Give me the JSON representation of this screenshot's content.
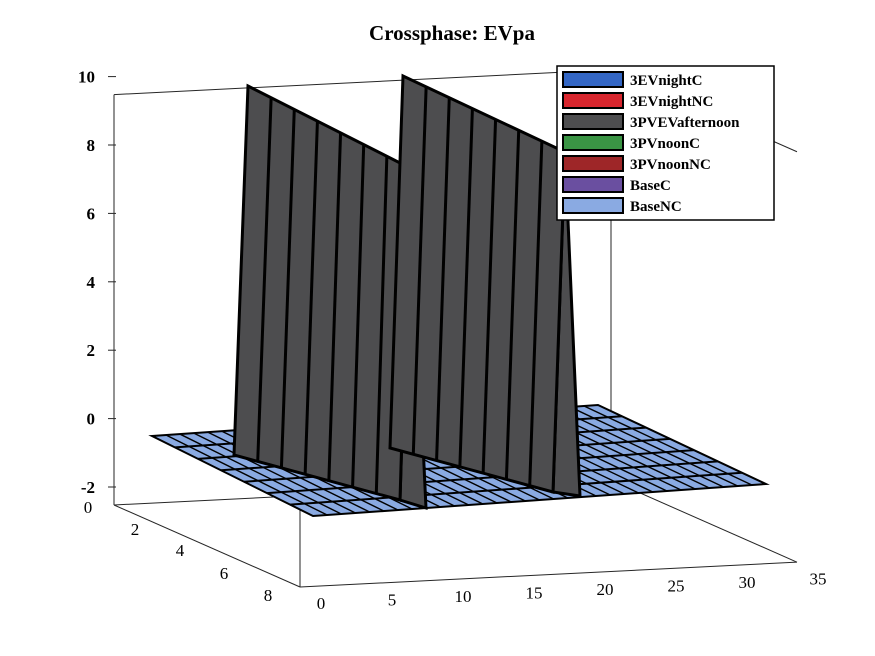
{
  "chart_data": {
    "type": "bar",
    "variant": "3d-bar",
    "title": "Crossphase: EVpa",
    "xlabel": "",
    "ylabel": "",
    "zlabel": "",
    "x_ticks": [
      "0",
      "5",
      "10",
      "15",
      "20",
      "25",
      "30",
      "35"
    ],
    "y_ticks": [
      "0",
      "2",
      "4",
      "6",
      "8"
    ],
    "z_ticks": [
      "-2",
      "0",
      "2",
      "4",
      "6",
      "8",
      "10"
    ],
    "xlim": [
      0,
      35
    ],
    "ylim": [
      0,
      8
    ],
    "zlim": [
      -2,
      10
    ],
    "grid": false,
    "legend_position": "top-right",
    "bar_walls": [
      {
        "series": "3PVEVafternoon",
        "x": [
          4,
          11
        ],
        "y": [
          0,
          7
        ],
        "z": 9.9
      },
      {
        "series": "3PVEVafternoon",
        "x": [
          16,
          25
        ],
        "y": [
          0,
          7
        ],
        "z": 9.9
      }
    ],
    "series": [
      {
        "name": "3EVnightC",
        "color": "#3366c4"
      },
      {
        "name": "3EVnightNC",
        "color": "#d8262e"
      },
      {
        "name": "3PVEVafternoon",
        "color": "#4d4d4f"
      },
      {
        "name": "3PVnoonC",
        "color": "#3a9444"
      },
      {
        "name": "3PVnoonNC",
        "color": "#9e2628"
      },
      {
        "name": "BaseC",
        "color": "#6a4fa0"
      },
      {
        "name": "BaseNC",
        "color": "#8aaae2"
      }
    ]
  }
}
